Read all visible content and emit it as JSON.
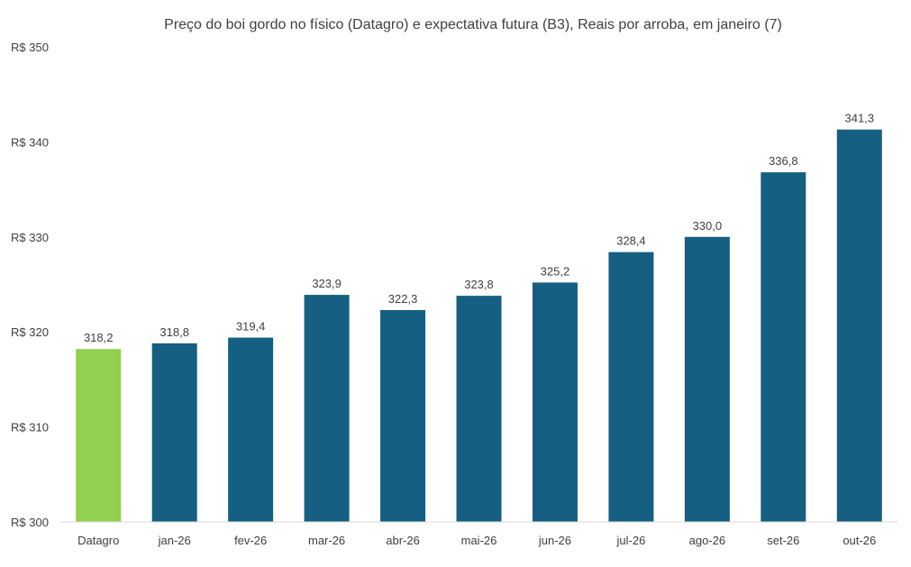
{
  "chart_data": {
    "type": "bar",
    "title": "Preço do boi gordo no físico (Datagro)  e expectativa futura (B3), Reais por arroba, em janeiro (7)",
    "categories": [
      "Datagro",
      "jan-26",
      "fev-26",
      "mar-26",
      "abr-26",
      "mai-26",
      "jun-26",
      "jul-26",
      "ago-26",
      "set-26",
      "out-26"
    ],
    "values": [
      318.2,
      318.8,
      319.4,
      323.9,
      322.3,
      323.8,
      325.2,
      328.4,
      330.0,
      336.8,
      341.3
    ],
    "data_labels": [
      "318,2",
      "318,8",
      "319,4",
      "323,9",
      "322,3",
      "323,8",
      "325,2",
      "328,4",
      "330,0",
      "336,8",
      "341,3"
    ],
    "ylim": [
      300,
      350
    ],
    "yticks": [
      300,
      310,
      320,
      330,
      340,
      350
    ],
    "ytick_labels": [
      "R$ 300",
      "R$ 310",
      "R$ 320",
      "R$ 330",
      "R$ 340",
      "R$ 350"
    ],
    "xlabel": "",
    "ylabel": "",
    "grid": false,
    "colors": {
      "highlight": "#92d050",
      "bars": "#155f82",
      "axis": "#d9d9d9",
      "text": "#404040"
    }
  }
}
